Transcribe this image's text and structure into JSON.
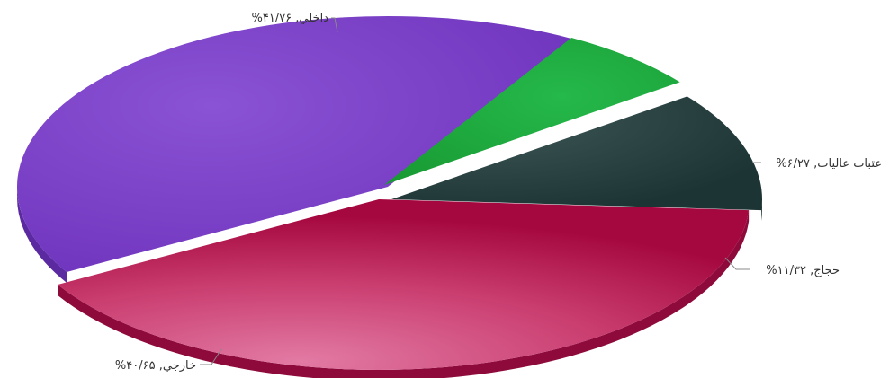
{
  "chart_data": {
    "type": "pie",
    "title": "",
    "series": [
      {
        "name": "",
        "slices": [
          {
            "label": "داخلي",
            "value": 41.76,
            "text": "%داخلي, ۴۱/۷۶",
            "color": "#7a3cc6"
          },
          {
            "label": "عتبات عاليات",
            "value": 6.27,
            "text": "%عتبات عاليات, ۶/۲۷",
            "color": "#1fa83c"
          },
          {
            "label": "حجاج",
            "value": 11.32,
            "text": "%حجاج, ۱۱/۳۲",
            "color": "#233c3c"
          },
          {
            "label": "خارجي",
            "value": 40.65,
            "text": "%خارجي, ۴۰/۶۵",
            "color": "#c8285a"
          }
        ]
      }
    ],
    "legend": "none",
    "style": "3d-exploded"
  }
}
